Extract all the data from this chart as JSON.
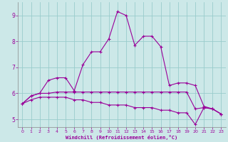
{
  "xlabel": "Windchill (Refroidissement éolien,°C)",
  "bg_color": "#cce8e8",
  "line_color": "#990099",
  "grid_color": "#99cccc",
  "xlim": [
    -0.5,
    23.5
  ],
  "ylim": [
    4.7,
    9.5
  ],
  "xticks": [
    0,
    1,
    2,
    3,
    4,
    5,
    6,
    7,
    8,
    9,
    10,
    11,
    12,
    13,
    14,
    15,
    16,
    17,
    18,
    19,
    20,
    21,
    22,
    23
  ],
  "yticks": [
    5,
    6,
    7,
    8,
    9
  ],
  "line1_x": [
    0,
    1,
    2,
    3,
    4,
    5,
    6,
    7,
    8,
    9,
    10,
    11,
    12,
    13,
    14,
    15,
    16,
    17,
    18,
    19,
    20,
    21,
    22,
    23
  ],
  "line1_y": [
    5.6,
    5.9,
    6.0,
    6.5,
    6.6,
    6.6,
    6.1,
    7.1,
    7.6,
    7.6,
    8.1,
    9.15,
    9.0,
    7.85,
    8.2,
    8.2,
    7.8,
    6.3,
    6.4,
    6.4,
    6.3,
    5.5,
    5.4,
    5.2
  ],
  "line2_x": [
    0,
    1,
    2,
    3,
    4,
    5,
    6,
    7,
    8,
    9,
    10,
    11,
    12,
    13,
    14,
    15,
    16,
    17,
    18,
    19,
    20,
    21,
    22,
    23
  ],
  "line2_y": [
    5.6,
    5.9,
    6.0,
    6.0,
    6.05,
    6.05,
    6.05,
    6.05,
    6.05,
    6.05,
    6.05,
    6.05,
    6.05,
    6.05,
    6.05,
    6.05,
    6.05,
    6.05,
    6.05,
    6.05,
    5.4,
    5.45,
    5.4,
    5.2
  ],
  "line3_x": [
    0,
    1,
    2,
    3,
    4,
    5,
    6,
    7,
    8,
    9,
    10,
    11,
    12,
    13,
    14,
    15,
    16,
    17,
    18,
    19,
    20,
    21,
    22,
    23
  ],
  "line3_y": [
    5.6,
    5.75,
    5.85,
    5.85,
    5.85,
    5.85,
    5.75,
    5.75,
    5.65,
    5.65,
    5.55,
    5.55,
    5.55,
    5.45,
    5.45,
    5.45,
    5.35,
    5.35,
    5.25,
    5.25,
    4.8,
    5.45,
    5.4,
    5.2
  ]
}
